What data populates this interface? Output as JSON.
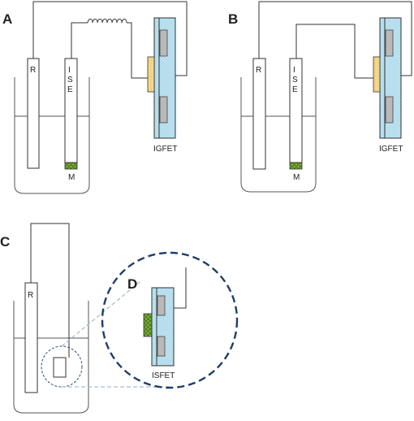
{
  "panels": {
    "a": {
      "label": "A",
      "reference": "R",
      "ise_letters": [
        "I",
        "S",
        "E"
      ],
      "membrane": "M",
      "transistor": "IGFET"
    },
    "b": {
      "label": "B",
      "reference": "R",
      "ise_letters": [
        "I",
        "S",
        "E"
      ],
      "membrane": "M",
      "transistor": "IGFET"
    },
    "c": {
      "label": "C",
      "reference": "R"
    },
    "d": {
      "label": "D",
      "transistor": "ISFET"
    }
  },
  "colors": {
    "gate_yellow": "#f5d68a",
    "membrane_green": "#7fb23a",
    "fet_blue": "#bfe3f0",
    "fet_dots": "#7ab8d8",
    "gray_block": "#b9b9b9",
    "dashed_blue": "#1f3d6b",
    "zoom_line": "#a9bccf"
  }
}
